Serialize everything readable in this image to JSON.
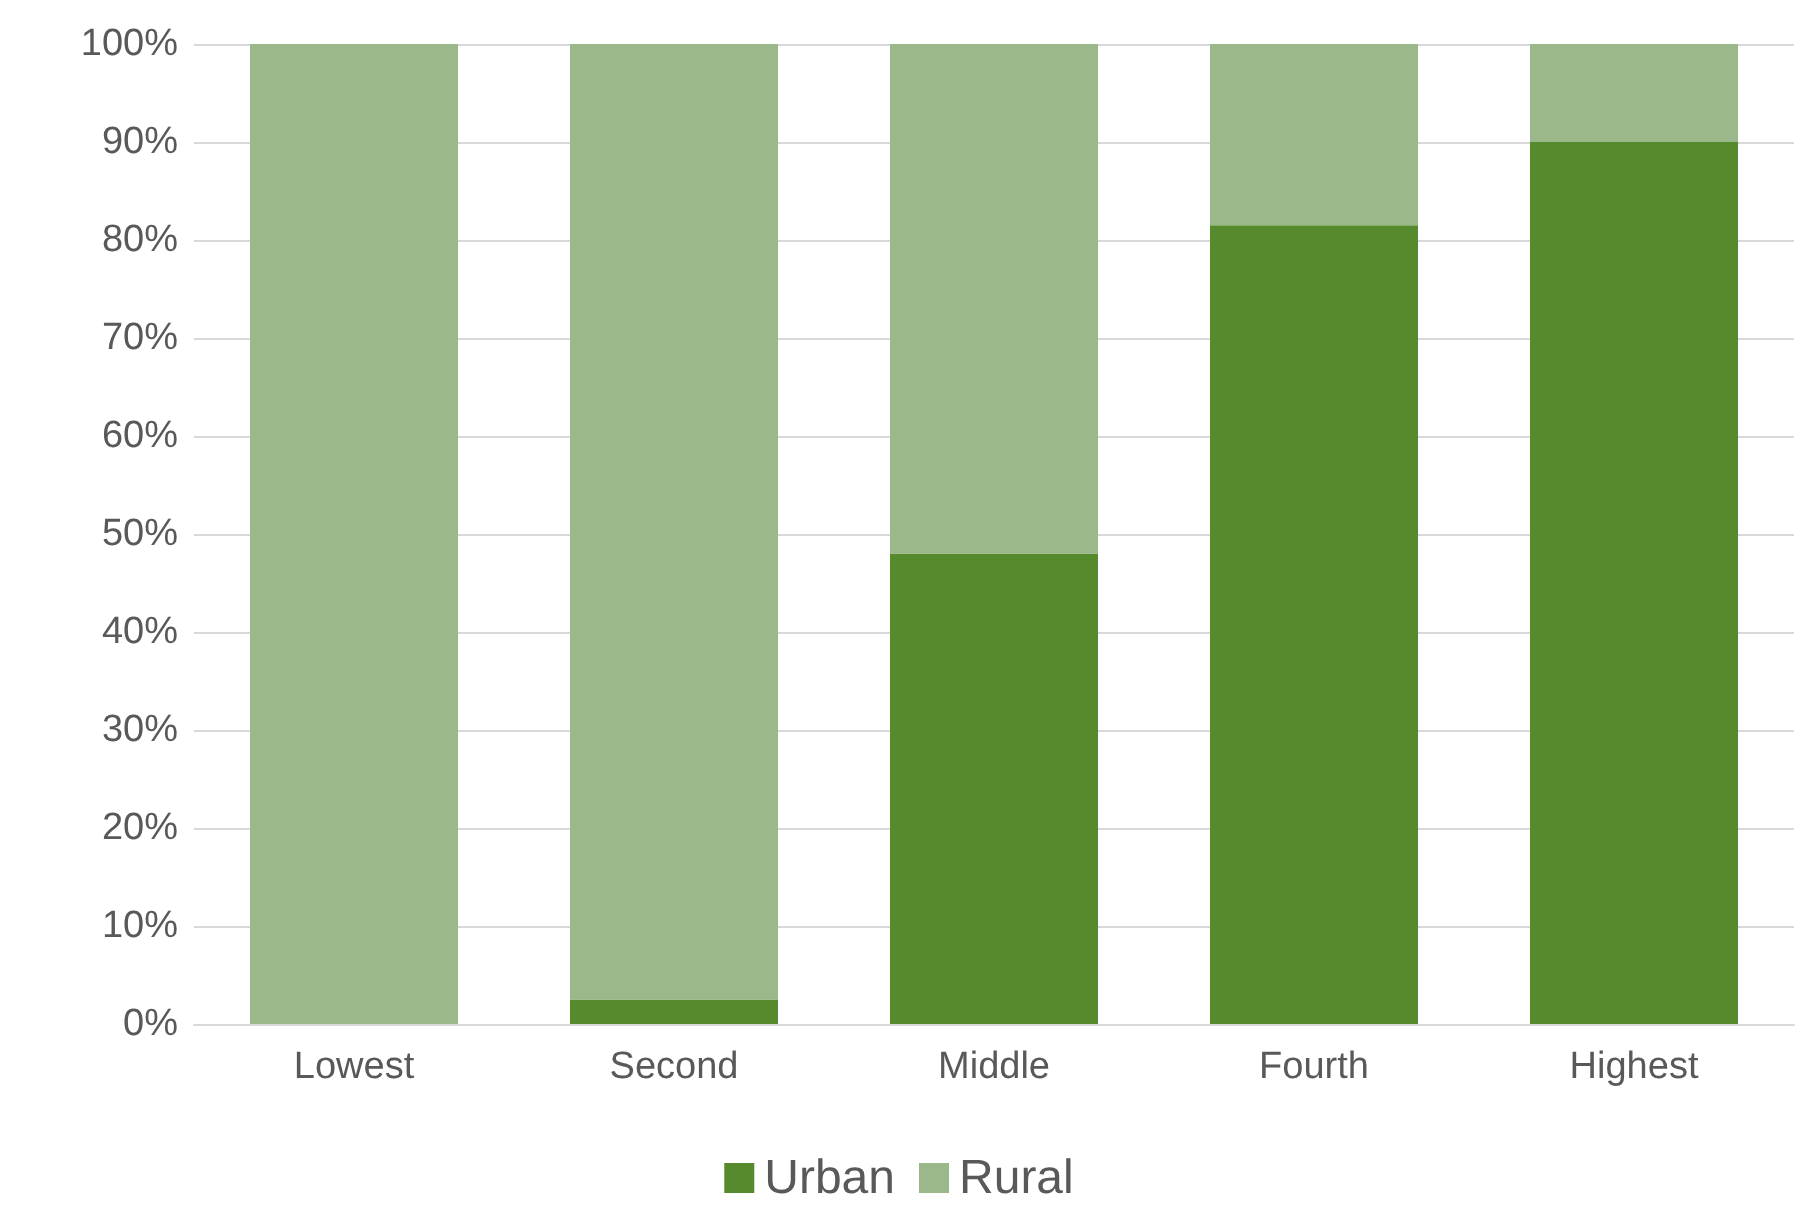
{
  "chart_data": {
    "type": "bar",
    "stacked": true,
    "categories": [
      "Lowest",
      "Second",
      "Middle",
      "Fourth",
      "Highest"
    ],
    "series": [
      {
        "name": "Urban",
        "color": "#578a2c",
        "values": [
          0,
          2.5,
          48,
          81.5,
          90
        ]
      },
      {
        "name": "Rural",
        "color": "#9bb88a",
        "values": [
          100,
          97.5,
          52,
          18.5,
          10
        ]
      }
    ],
    "ylim": [
      0,
      100
    ],
    "yticks": [
      {
        "value": 0,
        "label": "0%"
      },
      {
        "value": 10,
        "label": "10%"
      },
      {
        "value": 20,
        "label": "20%"
      },
      {
        "value": 30,
        "label": "30%"
      },
      {
        "value": 40,
        "label": "40%"
      },
      {
        "value": 50,
        "label": "50%"
      },
      {
        "value": 60,
        "label": "60%"
      },
      {
        "value": 70,
        "label": "70%"
      },
      {
        "value": 80,
        "label": "80%"
      },
      {
        "value": 90,
        "label": "90%"
      },
      {
        "value": 100,
        "label": "100%"
      }
    ],
    "grid": "y",
    "legend": "bottom"
  }
}
